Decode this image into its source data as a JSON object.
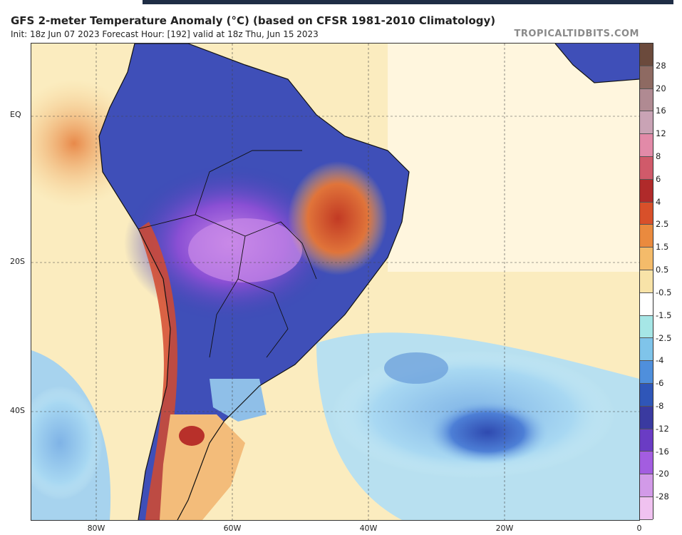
{
  "header": {
    "title": "GFS 2-meter Temperature Anomaly (°C) (based on CFSR 1981-2010 Climatology)",
    "subtitle": "Init: 18z Jun 07 2023   Forecast Hour: [192]   valid at 18z Thu, Jun 15 2023",
    "brand": "TROPICALTIDBITS.COM"
  },
  "map": {
    "lat_labels": [
      "EQ",
      "20S",
      "40S"
    ],
    "lon_labels": [
      "80W",
      "60W",
      "40W",
      "20W",
      "0"
    ],
    "region": "South America and South Atlantic"
  },
  "legend": {
    "labels": [
      "28",
      "20",
      "16",
      "12",
      "8",
      "6",
      "4",
      "2.5",
      "1.5",
      "0.5",
      "-0.5",
      "-1.5",
      "-2.5",
      "-4",
      "-6",
      "-8",
      "-12",
      "-16",
      "-20",
      "-28"
    ],
    "colors": [
      "#6b4a3c",
      "#8e6a62",
      "#b08a92",
      "#c9a3b5",
      "#e28aa8",
      "#d05a6a",
      "#b02a2a",
      "#d8502a",
      "#ea8a3e",
      "#f4bb6a",
      "#f8e3a8",
      "#ffffff",
      "#a6e6e6",
      "#7fc4ea",
      "#4f8fdc",
      "#2f56b8",
      "#3a3aa0",
      "#6a3cc4",
      "#a35de0",
      "#d29ae8",
      "#f0c2f0"
    ]
  }
}
